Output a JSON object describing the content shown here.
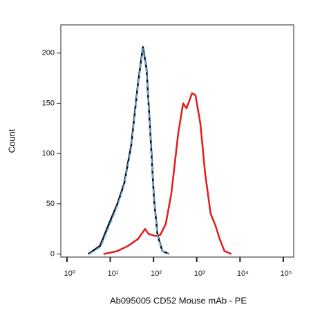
{
  "chart_data": {
    "type": "line",
    "xlabel": "Ab095005 CD52 Mouse mAb - PE",
    "ylabel": "Count",
    "xscale": "log",
    "xlim": [
      0.72,
      174000
    ],
    "xticks": [
      {
        "value": 1,
        "label": "10⁰"
      },
      {
        "value": 10,
        "label": "10¹"
      },
      {
        "value": 100,
        "label": "10²"
      },
      {
        "value": 1000,
        "label": "10³"
      },
      {
        "value": 10000,
        "label": "10⁴"
      },
      {
        "value": 100000,
        "label": "10⁵"
      }
    ],
    "ylim": [
      -3,
      228
    ],
    "yticks": [
      0,
      50,
      100,
      150,
      200
    ],
    "grid": false,
    "series": [
      {
        "color": "#e32020",
        "style": "solid",
        "x": [
          7,
          14.7,
          25.5,
          44,
          53,
          64,
          77,
          111,
          143,
          192,
          258,
          373,
          483,
          581,
          779,
          936,
          1211,
          1567,
          2102,
          2721,
          3392,
          4385,
          6340
        ],
        "values": [
          0,
          3,
          8,
          15,
          20,
          25,
          20,
          18,
          19,
          30,
          60,
          120,
          150,
          145,
          160,
          158,
          130,
          80,
          40,
          28,
          15,
          3,
          0
        ]
      },
      {
        "color": "#111111",
        "style": "solid",
        "x": [
          3.1,
          5.8,
          10,
          14.7,
          21,
          30.6,
          44,
          57,
          69,
          86,
          103,
          124,
          160,
          231
        ],
        "values": [
          0,
          8,
          33,
          50,
          70,
          108,
          170,
          206,
          184,
          115,
          54,
          19,
          3,
          0
        ]
      },
      {
        "color": "#6ab4e6",
        "style": "dashed",
        "x": [
          3.3,
          6,
          10,
          14.7,
          21,
          30.6,
          44,
          57,
          69,
          86,
          103,
          124,
          160,
          231
        ],
        "values": [
          0,
          7,
          30,
          48,
          68,
          105,
          168,
          204,
          182,
          112,
          52,
          18,
          3,
          0
        ]
      }
    ]
  }
}
